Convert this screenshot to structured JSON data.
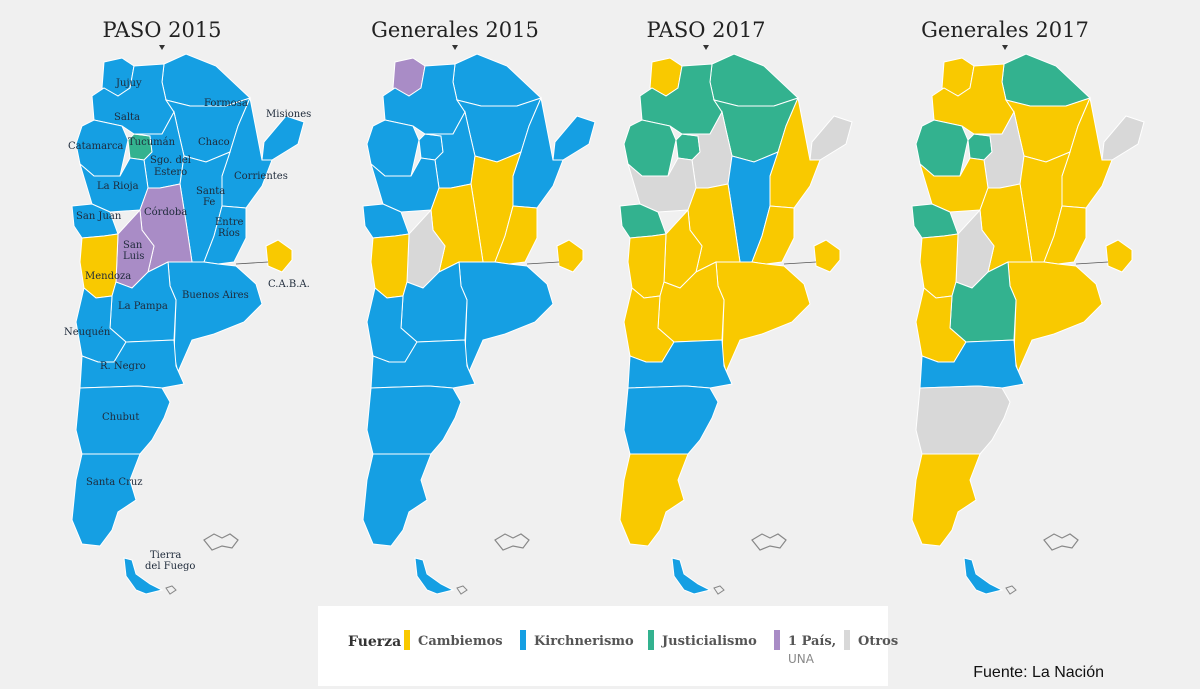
{
  "colors": {
    "cambiemos": "#f9c900",
    "kirchnerismo": "#159fe3",
    "justicialismo": "#33b28f",
    "un_pais": "#a98cc6",
    "otros": "#d8d8d8",
    "border": "#ffffff"
  },
  "maps": [
    {
      "title": "PASO 2015"
    },
    {
      "title": "Generales 2015"
    },
    {
      "title": "PASO 2017"
    },
    {
      "title": "Generales 2017"
    }
  ],
  "province_labels": {
    "jujuy": "Jujuy",
    "salta": "Salta",
    "formosa": "Formosa",
    "misiones": "Misiones",
    "catamarca": "Catamarca",
    "tucuman": "Tucumán",
    "sgo_line1": "Sgo. del",
    "sgo_line2": "Estero",
    "chaco": "Chaco",
    "corrientes": "Corrientes",
    "la_rioja": "La Rioja",
    "santa_fe_line1": "Santa",
    "santa_fe_line2": "Fe",
    "san_juan": "San Juan",
    "cordoba": "Córdoba",
    "entre_rios_line1": "Entre",
    "entre_rios_line2": "Ríos",
    "san_luis_line1": "San",
    "san_luis_line2": "Luis",
    "mendoza": "Mendoza",
    "caba": "C.A.B.A.",
    "la_pampa": "La Pampa",
    "buenos_aires": "Buenos Aires",
    "neuquen": "Neuquén",
    "r_negro": "R. Negro",
    "chubut": "Chubut",
    "santa_cruz": "Santa Cruz",
    "tierra_line1": "Tierra",
    "tierra_line2": "del Fuego"
  },
  "legend": {
    "title": "Fuerza",
    "items": [
      {
        "key": "cambiemos",
        "label": "Cambiemos",
        "sub": ""
      },
      {
        "key": "kirchnerismo",
        "label": "Kirchnerismo",
        "sub": ""
      },
      {
        "key": "justicialismo",
        "label": "Justicialismo",
        "sub": ""
      },
      {
        "key": "un_pais",
        "label": "1 País,",
        "sub": "UNA"
      },
      {
        "key": "otros",
        "label": "Otros",
        "sub": ""
      }
    ]
  },
  "results": [
    {
      "jujuy": "kirchnerismo",
      "salta": "kirchnerismo",
      "formosa": "kirchnerismo",
      "misiones": "kirchnerismo",
      "chaco": "kirchnerismo",
      "catamarca": "kirchnerismo",
      "tucuman": "justicialismo",
      "sgo": "kirchnerismo",
      "corrientes": "kirchnerismo",
      "la_rioja": "kirchnerismo",
      "santa_fe": "kirchnerismo",
      "san_juan": "kirchnerismo",
      "cordoba": "un_pais",
      "entre_rios": "kirchnerismo",
      "san_luis": "un_pais",
      "mendoza": "cambiemos",
      "la_pampa": "kirchnerismo",
      "buenos_aires": "kirchnerismo",
      "caba": "cambiemos",
      "neuquen": "kirchnerismo",
      "r_negro": "kirchnerismo",
      "chubut": "kirchnerismo",
      "santa_cruz": "kirchnerismo",
      "tierra": "kirchnerismo"
    },
    {
      "jujuy": "un_pais",
      "salta": "kirchnerismo",
      "formosa": "kirchnerismo",
      "misiones": "kirchnerismo",
      "chaco": "kirchnerismo",
      "catamarca": "kirchnerismo",
      "tucuman": "kirchnerismo",
      "sgo": "kirchnerismo",
      "corrientes": "kirchnerismo",
      "la_rioja": "kirchnerismo",
      "santa_fe": "cambiemos",
      "san_juan": "kirchnerismo",
      "cordoba": "cambiemos",
      "entre_rios": "cambiemos",
      "san_luis": "otros",
      "mendoza": "cambiemos",
      "la_pampa": "kirchnerismo",
      "buenos_aires": "kirchnerismo",
      "caba": "cambiemos",
      "neuquen": "kirchnerismo",
      "r_negro": "kirchnerismo",
      "chubut": "kirchnerismo",
      "santa_cruz": "kirchnerismo",
      "tierra": "kirchnerismo"
    },
    {
      "jujuy": "cambiemos",
      "salta": "justicialismo",
      "formosa": "justicialismo",
      "misiones": "otros",
      "chaco": "justicialismo",
      "catamarca": "justicialismo",
      "tucuman": "justicialismo",
      "sgo": "otros",
      "corrientes": "cambiemos",
      "la_rioja": "otros",
      "santa_fe": "kirchnerismo",
      "san_juan": "justicialismo",
      "cordoba": "cambiemos",
      "entre_rios": "cambiemos",
      "san_luis": "cambiemos",
      "mendoza": "cambiemos",
      "la_pampa": "cambiemos",
      "buenos_aires": "cambiemos",
      "caba": "cambiemos",
      "neuquen": "cambiemos",
      "r_negro": "kirchnerismo",
      "chubut": "kirchnerismo",
      "santa_cruz": "cambiemos",
      "tierra": "kirchnerismo"
    },
    {
      "jujuy": "cambiemos",
      "salta": "cambiemos",
      "formosa": "justicialismo",
      "misiones": "otros",
      "chaco": "cambiemos",
      "catamarca": "justicialismo",
      "tucuman": "justicialismo",
      "sgo": "otros",
      "corrientes": "cambiemos",
      "la_rioja": "cambiemos",
      "santa_fe": "cambiemos",
      "san_juan": "justicialismo",
      "cordoba": "cambiemos",
      "entre_rios": "cambiemos",
      "san_luis": "otros",
      "mendoza": "cambiemos",
      "la_pampa": "justicialismo",
      "buenos_aires": "cambiemos",
      "caba": "cambiemos",
      "neuquen": "cambiemos",
      "r_negro": "kirchnerismo",
      "chubut": "otros",
      "santa_cruz": "cambiemos",
      "tierra": "kirchnerismo"
    }
  ],
  "source": "Fuente: La Nación"
}
